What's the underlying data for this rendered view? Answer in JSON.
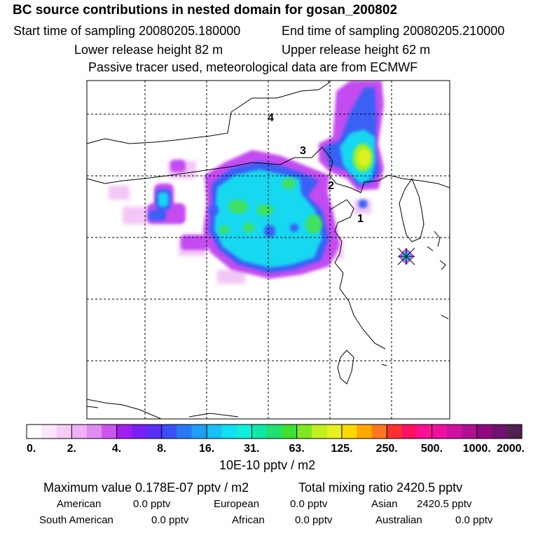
{
  "header": {
    "title": "BC  source contributions in nested domain for gosan_200802",
    "start_label": "Start time of sampling 20080205.180000",
    "end_label": "End time of sampling 20080205.210000",
    "lower_label": "Lower release height   82 m",
    "upper_label": "Upper release height   62 m",
    "note": "Passive tracer used, meteorological data are from ECMWF"
  },
  "map": {
    "region_labels": [
      "1",
      "2",
      "3",
      "4"
    ]
  },
  "colorbar": {
    "ticks": [
      "0.",
      "2.",
      "4.",
      "8.",
      "16.",
      "31.",
      "63.",
      "125.",
      "250.",
      "500.",
      "1000.",
      "2000."
    ],
    "unit": "10E-10 pptv / m2",
    "colors": [
      "#ffffff",
      "#fbe6fb",
      "#f6ccf6",
      "#f0b0f5",
      "#e08cf0",
      "#cc55ee",
      "#a020f0",
      "#7a20f5",
      "#5a2ff5",
      "#3a50f5",
      "#2a78f5",
      "#1e9ef5",
      "#18c0f5",
      "#10e0f0",
      "#10f0d8",
      "#10e8a8",
      "#20e070",
      "#40e030",
      "#80e820",
      "#c0f020",
      "#e8f020",
      "#ffd800",
      "#ffa800",
      "#ff7820",
      "#ff3030",
      "#ff1060",
      "#ff1090",
      "#f010a0",
      "#d010a0",
      "#b01090",
      "#900880",
      "#701070",
      "#502050"
    ]
  },
  "chart_data": {
    "type": "heatmap",
    "title": "BC  source contributions in nested domain for gosan_200802",
    "levels": [
      0,
      2,
      4,
      8,
      16,
      31,
      63,
      125,
      250,
      500,
      1000,
      2000
    ],
    "unit": "10E-10 pptv / m2",
    "maximum_value": "0.178E-07 pptv / m2",
    "total_mixing_ratio": "2420.5 pptv",
    "contributions": [
      {
        "name": "American",
        "value": "0.0 pptv"
      },
      {
        "name": "European",
        "value": "0.0 pptv"
      },
      {
        "name": "Asian",
        "value": "2420.5 pptv"
      },
      {
        "name": "South American",
        "value": "0.0 pptv"
      },
      {
        "name": "African",
        "value": "0.0 pptv"
      },
      {
        "name": "Australian",
        "value": "0.0 pptv"
      }
    ],
    "receptor": "gosan"
  },
  "footer": {
    "max_label": "Maximum value  0.178E-07 pptv / m2",
    "total_label": "Total mixing ratio     2420.5 pptv",
    "american_label": "American",
    "american_value": "0.0 pptv",
    "european_label": "European",
    "european_value": "0.0 pptv",
    "asian_label": "Asian",
    "asian_value": "2420.5 pptv",
    "south_american_label": "South American",
    "south_american_value": "0.0 pptv",
    "african_label": "African",
    "african_value": "0.0 pptv",
    "australian_label": "Australian",
    "australian_value": "0.0 pptv"
  }
}
